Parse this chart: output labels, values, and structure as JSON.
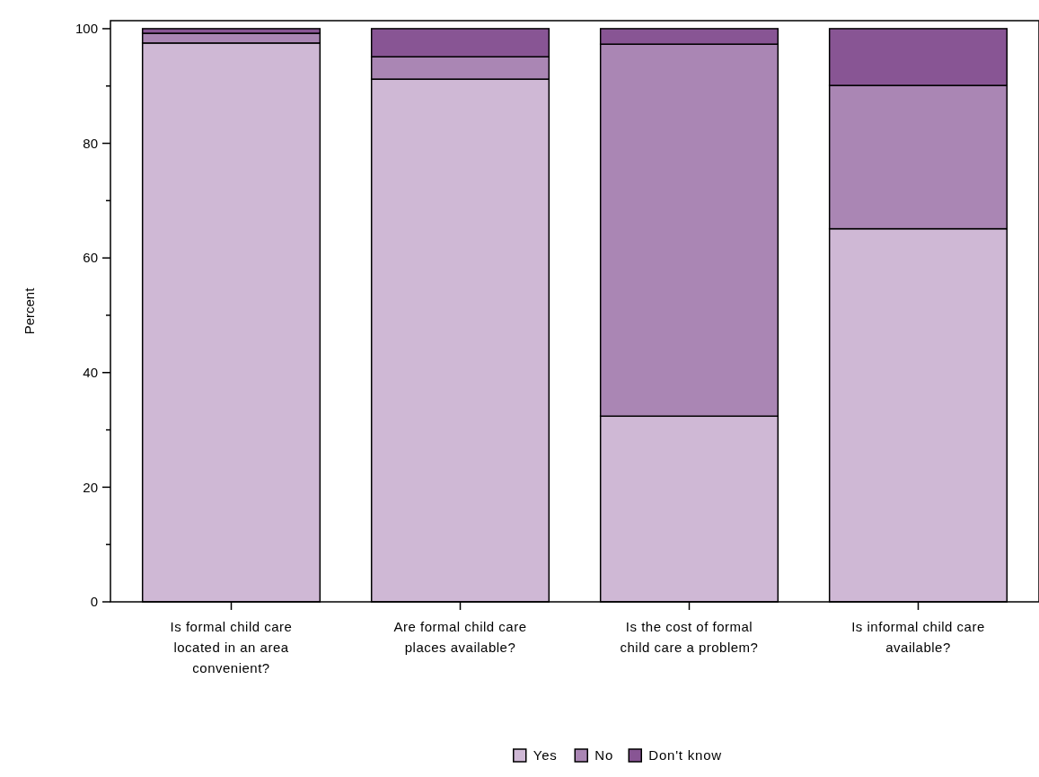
{
  "chart_data": {
    "type": "bar",
    "stacked": true,
    "ylabel": "Percent",
    "categories": [
      "Is formal child care located in an area convenient?",
      "Are formal child care places available?",
      "Is the cost of formal child care a problem?",
      "Is informal child care available?"
    ],
    "series": [
      {
        "name": "Yes",
        "color": "#cfb8d5",
        "values": [
          97.5,
          91.2,
          32.4,
          65.1
        ]
      },
      {
        "name": "No",
        "color": "#aa86b4",
        "values": [
          1.7,
          3.9,
          64.9,
          25.0
        ]
      },
      {
        "name": "Don't know",
        "color": "#885594",
        "values": [
          0.8,
          4.9,
          2.7,
          9.9
        ]
      }
    ],
    "ylim": [
      0,
      101.4
    ],
    "yticks": [
      0,
      {
        "value": 10,
        "label": null
      },
      20,
      {
        "value": 30,
        "label": null
      },
      40,
      {
        "value": 50,
        "label": null
      },
      60,
      {
        "value": 70,
        "label": null
      },
      80,
      {
        "value": 90,
        "label": null
      },
      100
    ],
    "grid": false,
    "legend": "bottom"
  }
}
